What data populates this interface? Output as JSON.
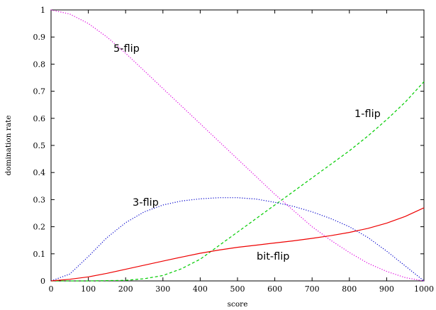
{
  "chart_data": {
    "type": "line",
    "title": "",
    "xlabel": "score",
    "ylabel": "domination rate",
    "xlim": [
      0,
      1000
    ],
    "ylim": [
      0,
      1
    ],
    "x_ticks": [
      "0",
      "100",
      "200",
      "300",
      "400",
      "500",
      "600",
      "700",
      "800",
      "900",
      "1000"
    ],
    "y_ticks": [
      "0",
      "0.1",
      "0.2",
      "0.3",
      "0.4",
      "0.5",
      "0.6",
      "0.7",
      "0.8",
      "0.9",
      "1"
    ],
    "grid": false,
    "legend": "none",
    "series": [
      {
        "name": "5-flip",
        "color": "#e000e0",
        "dash": "dotted",
        "x": [
          0,
          50,
          100,
          150,
          200,
          250,
          300,
          350,
          400,
          450,
          500,
          550,
          600,
          650,
          700,
          750,
          800,
          850,
          900,
          950,
          1000
        ],
        "y": [
          1.0,
          0.985,
          0.95,
          0.9,
          0.84,
          0.775,
          0.71,
          0.645,
          0.58,
          0.515,
          0.45,
          0.385,
          0.32,
          0.26,
          0.2,
          0.15,
          0.105,
          0.065,
          0.035,
          0.012,
          0.0
        ]
      },
      {
        "name": "1-flip",
        "color": "#00cc00",
        "dash": "dashed",
        "x": [
          0,
          100,
          200,
          250,
          300,
          350,
          400,
          450,
          500,
          550,
          600,
          650,
          700,
          750,
          800,
          850,
          900,
          950,
          1000
        ],
        "y": [
          0.0,
          0.0,
          0.002,
          0.008,
          0.02,
          0.045,
          0.08,
          0.13,
          0.18,
          0.23,
          0.28,
          0.33,
          0.38,
          0.43,
          0.48,
          0.535,
          0.595,
          0.66,
          0.735
        ]
      },
      {
        "name": "3-flip",
        "color": "#0000cc",
        "dash": "dotted",
        "x": [
          0,
          50,
          100,
          150,
          200,
          250,
          300,
          350,
          400,
          450,
          500,
          550,
          600,
          650,
          700,
          750,
          800,
          850,
          900,
          950,
          1000
        ],
        "y": [
          0.0,
          0.025,
          0.09,
          0.16,
          0.215,
          0.255,
          0.28,
          0.295,
          0.303,
          0.307,
          0.307,
          0.302,
          0.29,
          0.275,
          0.255,
          0.23,
          0.2,
          0.16,
          0.11,
          0.055,
          0.0
        ]
      },
      {
        "name": "bit-flip",
        "color": "#ee0000",
        "dash": "solid",
        "x": [
          0,
          50,
          100,
          150,
          200,
          250,
          300,
          350,
          400,
          450,
          500,
          550,
          600,
          650,
          700,
          750,
          800,
          850,
          900,
          950,
          1000
        ],
        "y": [
          0.0,
          0.006,
          0.015,
          0.028,
          0.043,
          0.058,
          0.073,
          0.088,
          0.102,
          0.114,
          0.124,
          0.132,
          0.14,
          0.148,
          0.157,
          0.167,
          0.179,
          0.194,
          0.213,
          0.238,
          0.27
        ]
      }
    ]
  }
}
